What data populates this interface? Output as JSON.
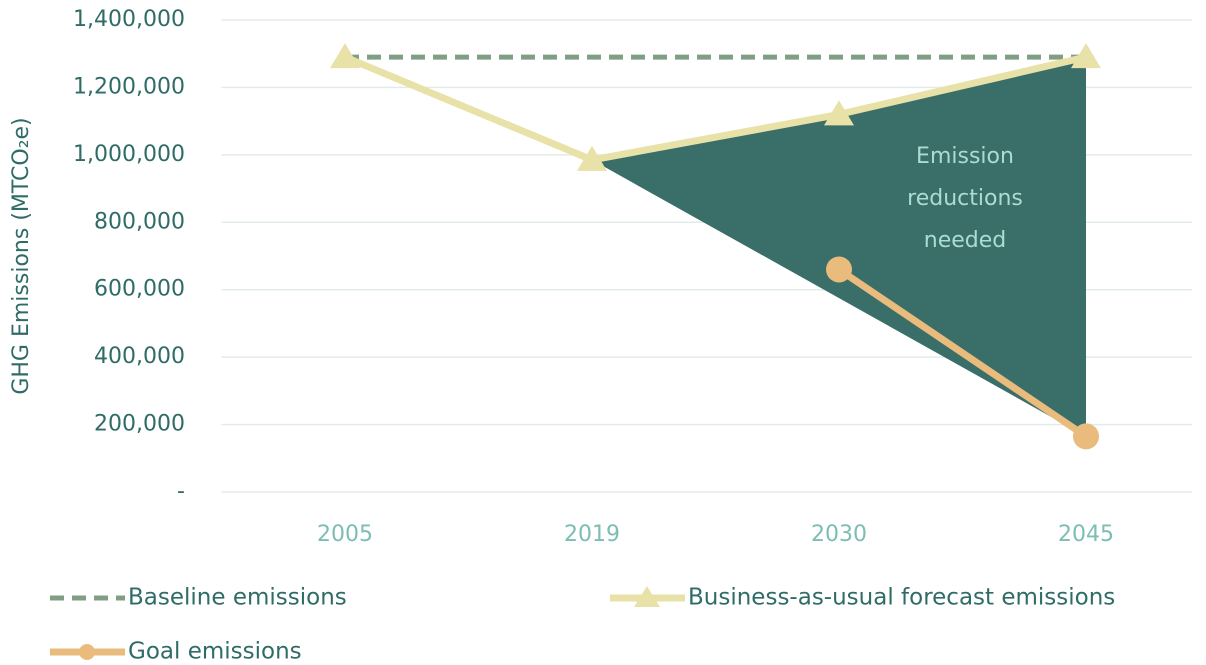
{
  "chart_data": {
    "type": "line",
    "y_label": "GHG Emissions (MTCO₂e)",
    "categories": [
      "2005",
      "2019",
      "2030",
      "2045"
    ],
    "series": [
      {
        "name": "Baseline emissions",
        "color": "#809e84",
        "dash": true,
        "marker": "none",
        "values": [
          1290000,
          1290000,
          1290000,
          1290000
        ]
      },
      {
        "name": "Business-as-usual forecast emissions",
        "color": "#e8e1a8",
        "dash": false,
        "marker": "triangle",
        "values": [
          1290000,
          985000,
          1120000,
          1290000
        ]
      },
      {
        "name": "Goal emissions",
        "color": "#e9bb7d",
        "dash": false,
        "marker": "circle",
        "values": [
          null,
          null,
          660000,
          165000
        ]
      }
    ],
    "annotation": {
      "lines": [
        "Emission",
        "reductions",
        "needed"
      ],
      "fill": "#3a6f69",
      "color": "#a9dcd3"
    },
    "ylim": [
      0,
      1400000
    ],
    "yticks": [
      {
        "value": 0,
        "label": "-"
      },
      {
        "value": 200000,
        "label": "200,000"
      },
      {
        "value": 400000,
        "label": "400,000"
      },
      {
        "value": 600000,
        "label": "600,000"
      },
      {
        "value": 800000,
        "label": "800,000"
      },
      {
        "value": 1000000,
        "label": "1,000,000"
      },
      {
        "value": 1200000,
        "label": "1,200,000"
      },
      {
        "value": 1400000,
        "label": "1,400,000"
      }
    ],
    "grid": true,
    "legend": "bottom"
  }
}
